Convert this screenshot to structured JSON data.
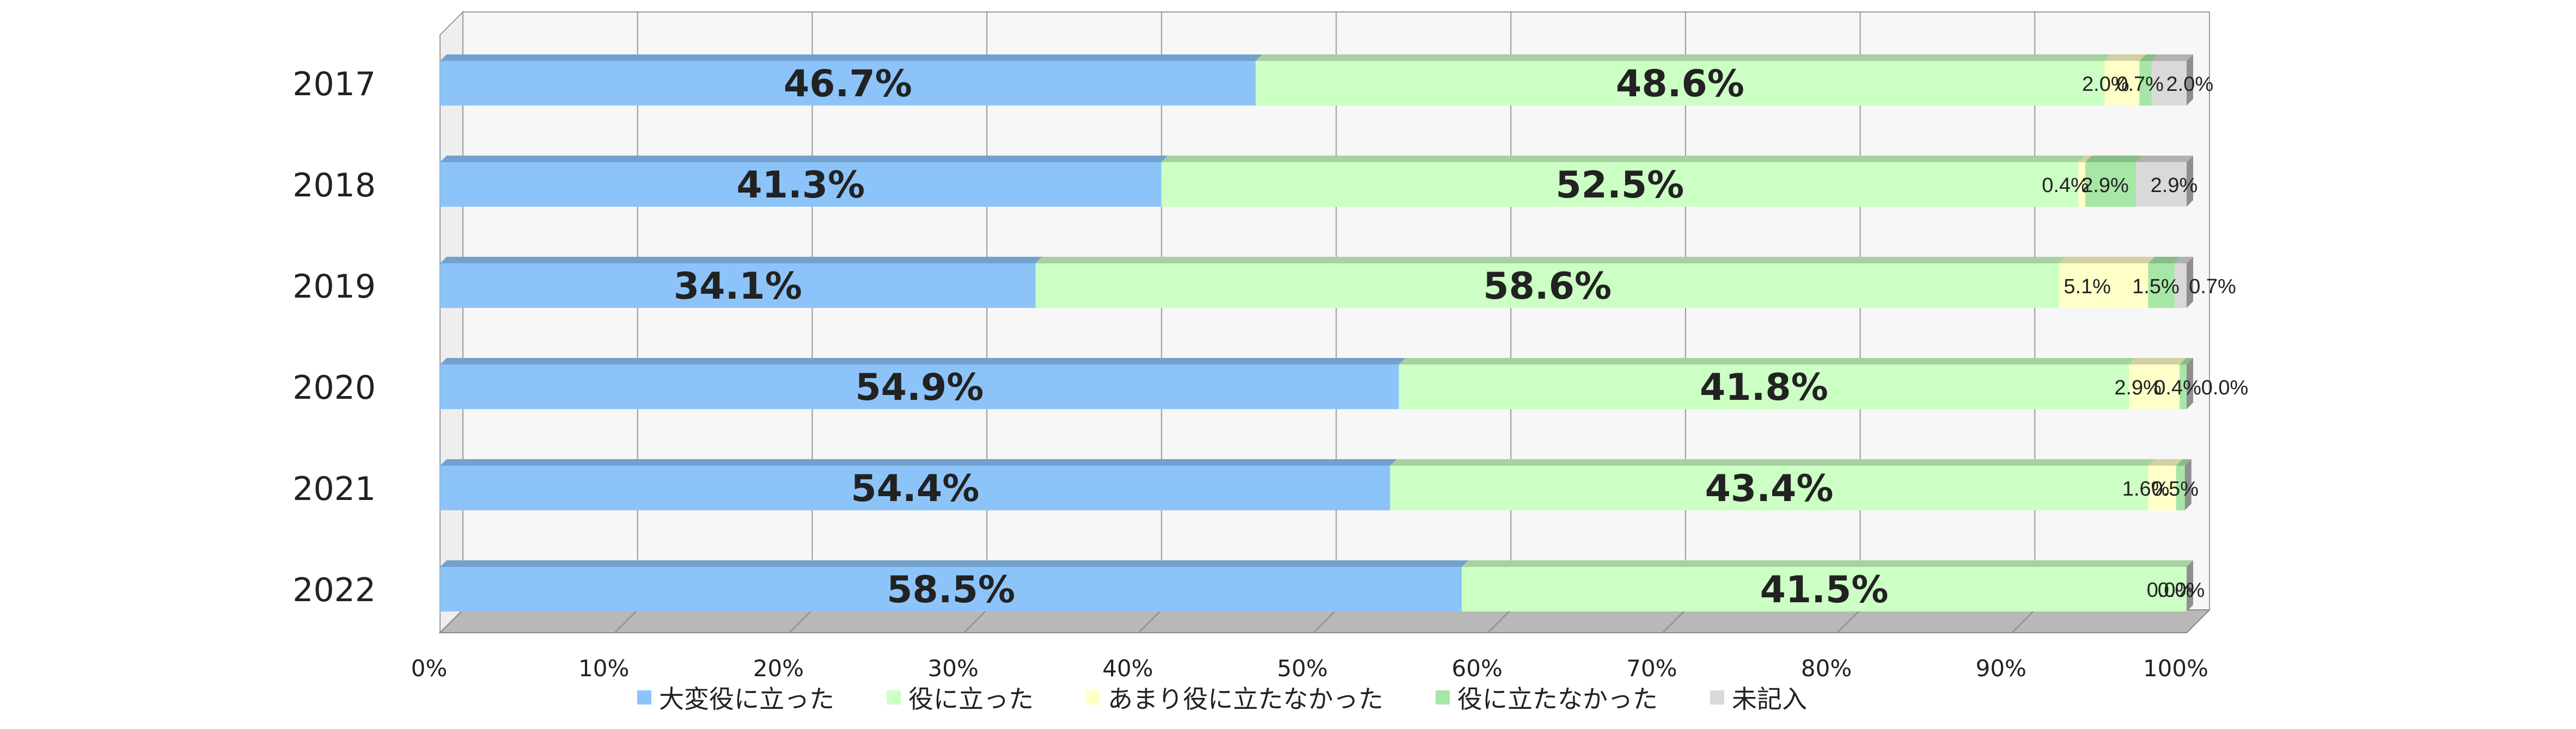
{
  "chart_data": {
    "type": "bar",
    "orientation": "horizontal",
    "stacked": "percent",
    "title": "",
    "xlabel": "",
    "ylabel": "",
    "xlim": [
      0,
      100
    ],
    "grid": true,
    "legend_position": "bottom",
    "categories": [
      "2017",
      "2018",
      "2019",
      "2020",
      "2021",
      "2022"
    ],
    "x_ticks": [
      "0%",
      "10%",
      "20%",
      "30%",
      "40%",
      "50%",
      "60%",
      "70%",
      "80%",
      "90%",
      "100%"
    ],
    "series": [
      {
        "name": "大変役に立った",
        "color": "#8cc4fa",
        "values": [
          46.7,
          41.3,
          34.1,
          54.9,
          54.4,
          58.5
        ]
      },
      {
        "name": "役に立った",
        "color": "#ccffc4",
        "values": [
          48.6,
          52.5,
          58.6,
          41.8,
          43.4,
          41.5
        ]
      },
      {
        "name": "あまり役に立たなかった",
        "color": "#ffffc8",
        "values": [
          2.0,
          0.4,
          5.1,
          2.9,
          1.6,
          0.0
        ]
      },
      {
        "name": "役に立たなかった",
        "color": "#a6e6a6",
        "values": [
          0.7,
          2.9,
          1.5,
          0.4,
          0.5,
          0.0
        ]
      },
      {
        "name": "未記入",
        "color": "#d9d9d9",
        "values": [
          2.0,
          2.9,
          0.7,
          0.0,
          0.0,
          0.0
        ]
      }
    ],
    "data_labels": [
      [
        "46.7%",
        "48.6%",
        "2.0%",
        "0.7%",
        "2.0%"
      ],
      [
        "41.3%",
        "52.5%",
        "0.4%",
        "2.9%",
        "2.9%"
      ],
      [
        "34.1%",
        "58.6%",
        "5.1%",
        "1.5%",
        "0.7%"
      ],
      [
        "54.9%",
        "41.8%",
        "2.9%",
        "0.4%",
        "0.0%"
      ],
      [
        "54.4%",
        "43.4%",
        "1.6%",
        "0.5%",
        ""
      ],
      [
        "58.5%",
        "41.5%",
        "0.0%",
        "0.0%",
        ""
      ]
    ]
  }
}
